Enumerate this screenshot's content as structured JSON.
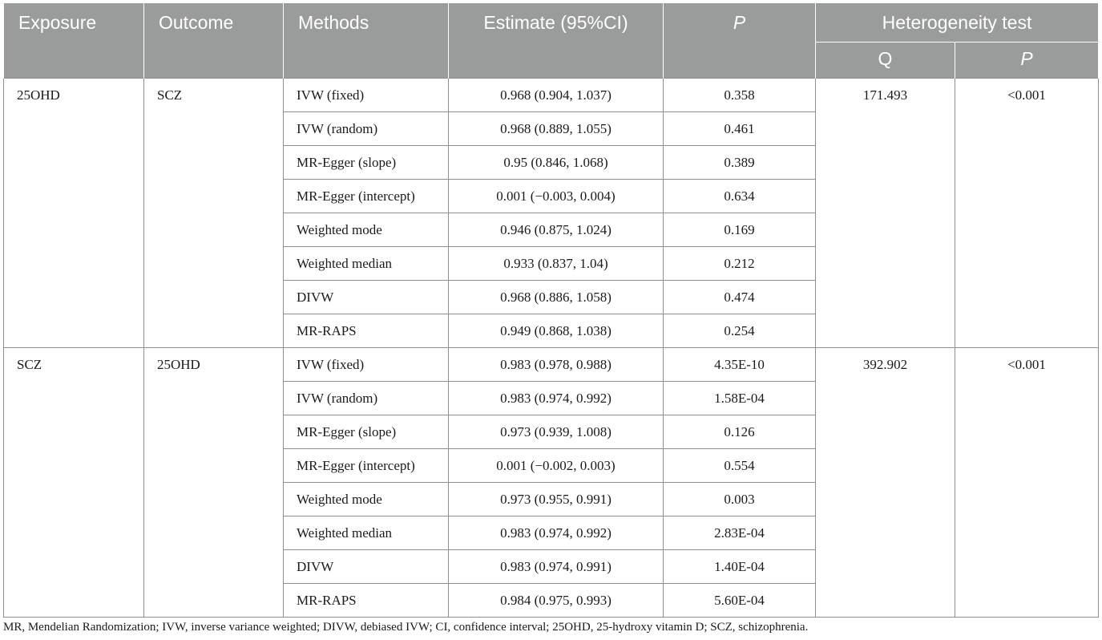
{
  "header": {
    "exposure": "Exposure",
    "outcome": "Outcome",
    "methods": "Methods",
    "estimate": "Estimate (95%CI)",
    "p": "P",
    "heterogeneity": "Heterogeneity test",
    "q": "Q",
    "p2": "P"
  },
  "groups": [
    {
      "exposure": "25OHD",
      "outcome": "SCZ",
      "q": "171.493",
      "p": "<0.001",
      "rows": [
        {
          "method": "IVW (fixed)",
          "estimate": "0.968 (0.904, 1.037)",
          "p": "0.358"
        },
        {
          "method": "IVW (random)",
          "estimate": "0.968 (0.889, 1.055)",
          "p": "0.461"
        },
        {
          "method": "MR-Egger (slope)",
          "estimate": "0.95 (0.846, 1.068)",
          "p": "0.389"
        },
        {
          "method": "MR-Egger (intercept)",
          "estimate": "0.001 (−0.003, 0.004)",
          "p": "0.634"
        },
        {
          "method": "Weighted mode",
          "estimate": "0.946 (0.875, 1.024)",
          "p": "0.169"
        },
        {
          "method": "Weighted median",
          "estimate": "0.933 (0.837, 1.04)",
          "p": "0.212"
        },
        {
          "method": "DIVW",
          "estimate": "0.968 (0.886, 1.058)",
          "p": "0.474"
        },
        {
          "method": "MR-RAPS",
          "estimate": "0.949 (0.868, 1.038)",
          "p": "0.254"
        }
      ]
    },
    {
      "exposure": "SCZ",
      "outcome": "25OHD",
      "q": "392.902",
      "p": "<0.001",
      "rows": [
        {
          "method": "IVW (fixed)",
          "estimate": "0.983 (0.978, 0.988)",
          "p": "4.35E-10"
        },
        {
          "method": "IVW (random)",
          "estimate": "0.983 (0.974, 0.992)",
          "p": "1.58E-04"
        },
        {
          "method": "MR-Egger (slope)",
          "estimate": "0.973 (0.939, 1.008)",
          "p": "0.126"
        },
        {
          "method": "MR-Egger (intercept)",
          "estimate": "0.001 (−0.002, 0.003)",
          "p": "0.554"
        },
        {
          "method": "Weighted mode",
          "estimate": "0.973 (0.955, 0.991)",
          "p": "0.003"
        },
        {
          "method": "Weighted median",
          "estimate": "0.983 (0.974, 0.992)",
          "p": "2.83E-04"
        },
        {
          "method": "DIVW",
          "estimate": "0.983 (0.974, 0.991)",
          "p": "1.40E-04"
        },
        {
          "method": "MR-RAPS",
          "estimate": "0.984 (0.975, 0.993)",
          "p": "5.60E-04"
        }
      ]
    }
  ],
  "footnote": "MR, Mendelian Randomization; IVW, inverse variance weighted; DIVW, debiased IVW; CI, confidence interval; 25OHD, 25-hydroxy vitamin D; SCZ, schizophrenia."
}
